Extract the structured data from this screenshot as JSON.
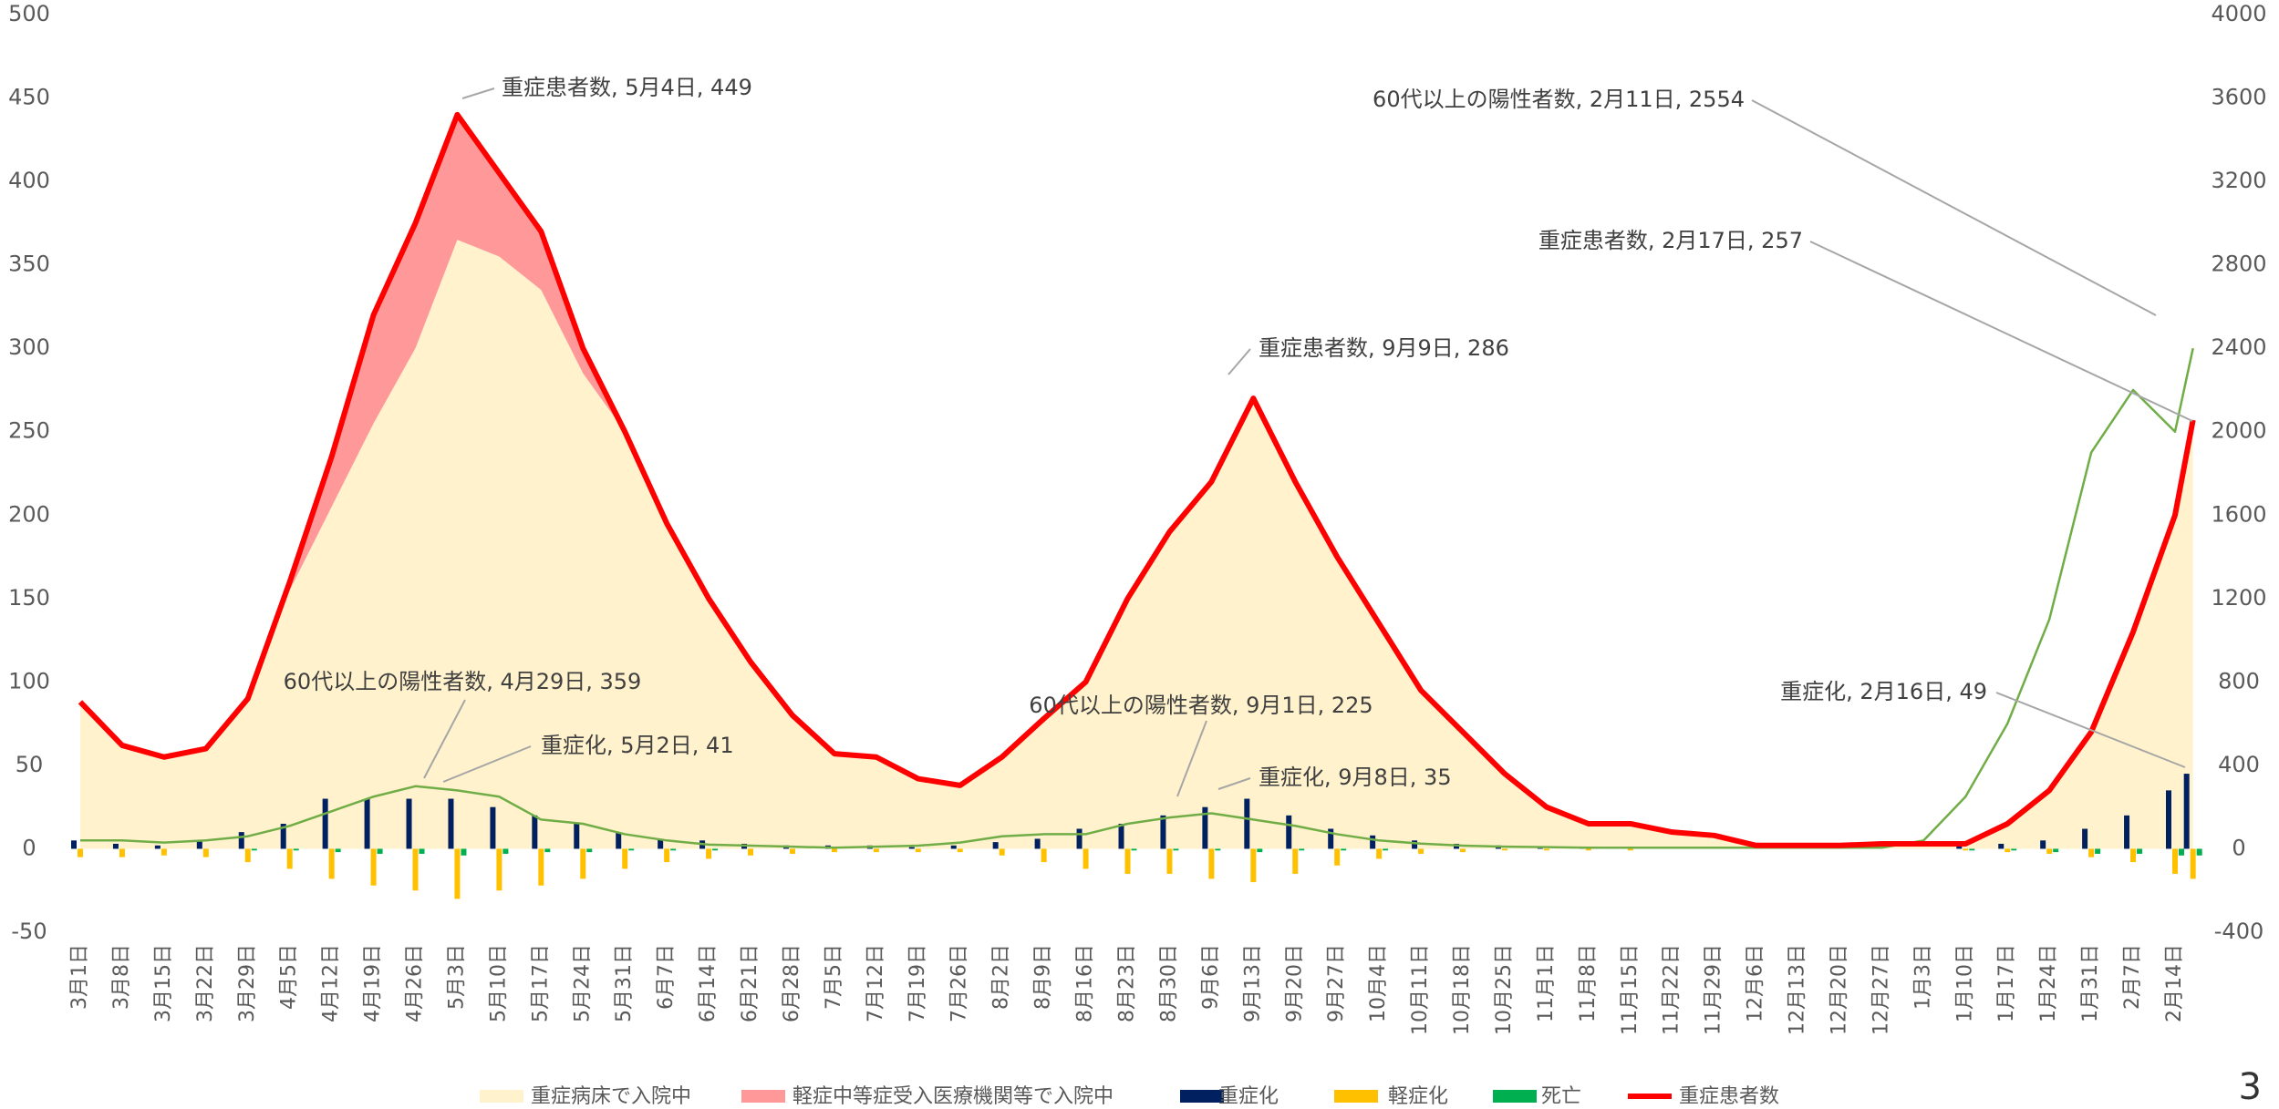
{
  "chart_data": {
    "type": "combo",
    "categories": [
      "3月1日",
      "3月8日",
      "3月15日",
      "3月22日",
      "3月29日",
      "4月5日",
      "4月12日",
      "4月19日",
      "4月26日",
      "5月3日",
      "5月10日",
      "5月17日",
      "5月24日",
      "5月31日",
      "6月7日",
      "6月14日",
      "6月21日",
      "6月28日",
      "7月5日",
      "7月12日",
      "7月19日",
      "7月26日",
      "8月2日",
      "8月9日",
      "8月16日",
      "8月23日",
      "8月30日",
      "9月6日",
      "9月13日",
      "9月20日",
      "9月27日",
      "10月4日",
      "10月11日",
      "10月18日",
      "10月25日",
      "11月1日",
      "11月8日",
      "11月15日",
      "11月22日",
      "11月29日",
      "12月6日",
      "12月13日",
      "12月20日",
      "12月27日",
      "1月3日",
      "1月10日",
      "1月17日",
      "1月24日",
      "1月31日",
      "2月7日",
      "2月14日",
      null
    ],
    "series": [
      {
        "name": "重症病床で入院中",
        "type": "area",
        "color": "#fff2cc",
        "values": [
          88,
          62,
          55,
          60,
          90,
          155,
          205,
          255,
          300,
          365,
          355,
          335,
          285,
          250,
          195,
          150,
          112,
          80,
          57,
          55,
          42,
          38,
          55,
          78,
          100,
          150,
          190,
          220,
          270,
          220,
          175,
          135,
          95,
          70,
          45,
          25,
          15,
          15,
          10,
          8,
          2,
          2,
          2,
          3,
          3,
          3,
          15,
          35,
          70,
          130,
          200,
          257
        ]
      },
      {
        "name": "軽症中等症受入医療機関等で入院中",
        "type": "area",
        "color": "#ff9999",
        "values": [
          0,
          0,
          0,
          0,
          0,
          5,
          30,
          65,
          75,
          75,
          50,
          35,
          15,
          0,
          0,
          0,
          0,
          0,
          0,
          0,
          0,
          0,
          0,
          0,
          0,
          0,
          0,
          0,
          0,
          0,
          0,
          0,
          0,
          0,
          0,
          0,
          0,
          0,
          0,
          0,
          0,
          0,
          0,
          0,
          0,
          0,
          0,
          0,
          0,
          0,
          0,
          0
        ]
      },
      {
        "name": "重症化",
        "type": "bar",
        "color": "#002060",
        "values": [
          5,
          3,
          2,
          5,
          10,
          15,
          30,
          30,
          30,
          30,
          25,
          20,
          15,
          10,
          6,
          5,
          3,
          2,
          2,
          2,
          1,
          2,
          4,
          6,
          12,
          15,
          20,
          25,
          30,
          20,
          12,
          8,
          5,
          3,
          2,
          1,
          1,
          1,
          1,
          0,
          0,
          0,
          0,
          0,
          0,
          2,
          3,
          5,
          12,
          20,
          35,
          45
        ]
      },
      {
        "name": "軽症化",
        "type": "bar",
        "color": "#ffc000",
        "values": [
          -5,
          -5,
          -4,
          -5,
          -8,
          -12,
          -18,
          -22,
          -25,
          -30,
          -25,
          -22,
          -18,
          -12,
          -8,
          -6,
          -4,
          -3,
          -2,
          -2,
          -2,
          -2,
          -4,
          -8,
          -12,
          -15,
          -15,
          -18,
          -20,
          -15,
          -10,
          -6,
          -3,
          -2,
          -1,
          -1,
          -1,
          -1,
          0,
          0,
          0,
          0,
          0,
          0,
          0,
          -1,
          -2,
          -3,
          -5,
          -8,
          -15,
          -18
        ]
      },
      {
        "name": "死亡",
        "type": "bar",
        "color": "#00b050",
        "values": [
          0,
          0,
          0,
          0,
          -1,
          -1,
          -2,
          -3,
          -3,
          -4,
          -3,
          -2,
          -2,
          -1,
          -1,
          -1,
          0,
          0,
          0,
          0,
          0,
          0,
          0,
          0,
          0,
          -1,
          -1,
          -1,
          -2,
          -1,
          -1,
          -1,
          0,
          0,
          0,
          0,
          0,
          0,
          0,
          0,
          0,
          0,
          0,
          0,
          0,
          -1,
          -1,
          -2,
          -3,
          -3,
          -4,
          -4
        ]
      },
      {
        "type": "line",
        "axis": "y2",
        "color": "#70ad47",
        "values": [
          40,
          40,
          30,
          40,
          60,
          110,
          180,
          250,
          300,
          280,
          250,
          140,
          120,
          70,
          40,
          20,
          15,
          10,
          5,
          10,
          15,
          30,
          60,
          70,
          70,
          120,
          150,
          170,
          140,
          110,
          70,
          40,
          25,
          15,
          10,
          8,
          5,
          5,
          5,
          5,
          5,
          5,
          5,
          5,
          40,
          250,
          600,
          1100,
          1900,
          2200,
          2000,
          2400
        ]
      },
      {
        "name": "重症患者数",
        "type": "line",
        "color": "#ff0000",
        "values": [
          88,
          62,
          55,
          60,
          90,
          160,
          235,
          320,
          375,
          440,
          405,
          370,
          300,
          250,
          195,
          150,
          112,
          80,
          57,
          55,
          42,
          38,
          55,
          78,
          100,
          150,
          190,
          220,
          270,
          220,
          175,
          135,
          95,
          70,
          45,
          25,
          15,
          15,
          10,
          8,
          2,
          2,
          2,
          3,
          3,
          3,
          15,
          35,
          70,
          130,
          200,
          257
        ]
      }
    ],
    "ylim": [
      -50,
      500
    ],
    "yticks": [
      -50,
      0,
      50,
      100,
      150,
      200,
      250,
      300,
      350,
      400,
      450,
      500
    ],
    "y2lim": [
      -400,
      4000
    ],
    "y2ticks": [
      -400,
      0,
      400,
      800,
      1200,
      1600,
      2000,
      2400,
      2800,
      3200,
      3600,
      4000
    ],
    "annotations": [
      "重症患者数, 5月4日, 449",
      "60代以上の陽性者数, 2月11日, 2554",
      "重症患者数, 2月17日, 257",
      "重症患者数, 9月9日, 286",
      "60代以上の陽性者数, 4月29日, 359",
      "重症化, 5月2日, 41",
      "60代以上の陽性者数, 9月1日, 225",
      "重症化, 9月8日, 35",
      "重症化, 2月16日, 49"
    ],
    "page": "3"
  }
}
